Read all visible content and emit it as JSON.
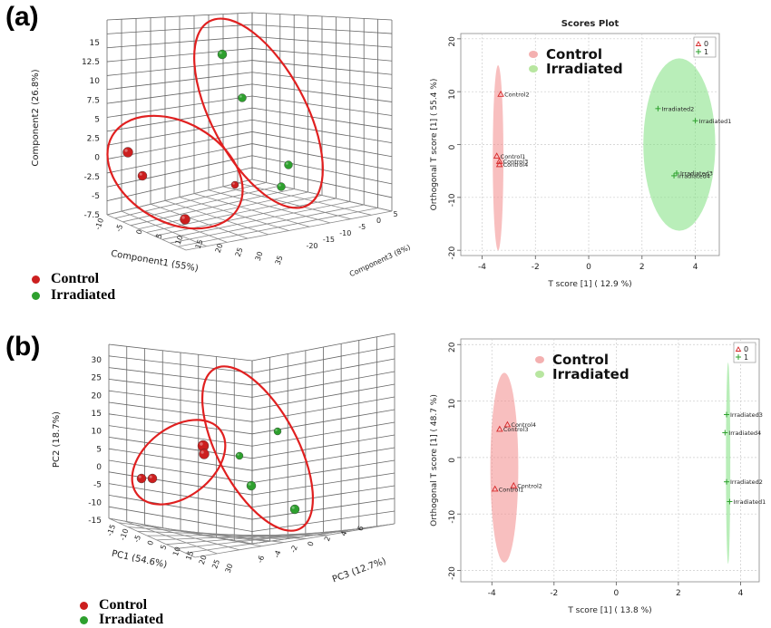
{
  "panels": {
    "a": "(a)",
    "b": "(b)"
  },
  "colors": {
    "control": "#cc1f1f",
    "irradiated": "#2ea02e",
    "ellipse": "#e02020",
    "pink": "#f28b8b",
    "green_fill": "#7fe07f"
  },
  "legend_a": {
    "control": "Control",
    "irradiated": "Irradiated"
  },
  "legend_b": {
    "control": "Control",
    "irradiated": "Irradiated"
  },
  "chart_data": [
    {
      "type": "scatter",
      "projection": "3d",
      "title": "",
      "xlabel": "Component1 (55%)",
      "ylabel": "Component2 (26.8%)",
      "zlabel": "Component3 (8%)",
      "xticks": [
        "-10",
        "-5",
        "0",
        "5",
        "10",
        "15",
        "20",
        "25",
        "30",
        "35"
      ],
      "yticks": [
        "-7.5",
        "-5",
        "-2.5",
        "0",
        "2.5",
        "5",
        "7.5",
        "10",
        "12.5",
        "15"
      ],
      "zticks": [
        "-20",
        "-15",
        "-10",
        "-5",
        "0",
        "5"
      ],
      "series": [
        {
          "name": "Control",
          "count": 4
        },
        {
          "name": "Irradiated",
          "count": 4
        }
      ]
    },
    {
      "type": "scatter",
      "title": "Scores Plot",
      "xlabel": "T score [1] ( 12.9 %)",
      "ylabel": "Orthogonal T score [1] ( 55.4 %)",
      "xlim": [
        -4.8,
        4.9
      ],
      "ylim": [
        -21,
        21
      ],
      "xticks": [
        -4,
        -2,
        0,
        2,
        4
      ],
      "yticks": [
        -20,
        -10,
        0,
        10,
        20
      ],
      "legend": {
        "position": "top-right",
        "entries": [
          "0",
          "1"
        ]
      },
      "inset_legend": [
        "Control",
        "Irradiated"
      ],
      "series": [
        {
          "name": "0",
          "marker": "triangle",
          "points": [
            {
              "label": "Control2",
              "x": -3.3,
              "y": 9.5
            },
            {
              "label": "Control1",
              "x": -3.45,
              "y": -2.2
            },
            {
              "label": "Control3",
              "x": -3.35,
              "y": -3.2
            },
            {
              "label": "Control4",
              "x": -3.35,
              "y": -3.8
            }
          ]
        },
        {
          "name": "1",
          "marker": "plus",
          "points": [
            {
              "label": "Irradiated2",
              "x": 2.6,
              "y": 6.8
            },
            {
              "label": "Irradiated1",
              "x": 4.0,
              "y": 4.5
            },
            {
              "label": "Irradiated3",
              "x": 3.3,
              "y": -5.4
            },
            {
              "label": "Irradiated4",
              "x": 3.2,
              "y": -5.9
            }
          ]
        }
      ]
    },
    {
      "type": "scatter",
      "projection": "3d",
      "title": "",
      "xlabel": "PC1 (54.6%)",
      "ylabel": "PC2 (18.7%)",
      "zlabel": "PC3 (12.7%)",
      "xticks": [
        "-15",
        "-10",
        "-5",
        "0",
        "5",
        "10",
        "15",
        "20",
        "25",
        "30"
      ],
      "yticks": [
        "-15",
        "-10",
        "-5",
        "0",
        "5",
        "10",
        "15",
        "20",
        "25",
        "30"
      ],
      "zticks": [
        "-6",
        "-4",
        "-2",
        "0",
        "2",
        "4",
        "6"
      ],
      "series": [
        {
          "name": "Control",
          "count": 4
        },
        {
          "name": "Irradiated",
          "count": 4
        }
      ]
    },
    {
      "type": "scatter",
      "title": "",
      "xlabel": "T score [1] ( 13.8 %)",
      "ylabel": "Orthogonal T score [1] ( 48.7 %)",
      "xlim": [
        -5,
        4.6
      ],
      "ylim": [
        -22,
        21
      ],
      "xticks": [
        -4,
        -2,
        0,
        2,
        4
      ],
      "yticks": [
        -20,
        -10,
        0,
        10,
        20
      ],
      "legend": {
        "position": "top-right",
        "entries": [
          "0",
          "1"
        ]
      },
      "inset_legend": [
        "Control",
        "Irradiated"
      ],
      "series": [
        {
          "name": "0",
          "marker": "triangle",
          "points": [
            {
              "label": "Control4",
              "x": -3.5,
              "y": 5.8
            },
            {
              "label": "Control3",
              "x": -3.75,
              "y": 5.0
            },
            {
              "label": "Control2",
              "x": -3.3,
              "y": -5.0
            },
            {
              "label": "Control1",
              "x": -3.9,
              "y": -5.6
            }
          ]
        },
        {
          "name": "1",
          "marker": "plus",
          "points": [
            {
              "label": "Irradiated3",
              "x": 3.55,
              "y": 7.6
            },
            {
              "label": "Irradiated4",
              "x": 3.5,
              "y": 4.4
            },
            {
              "label": "Irradiated2",
              "x": 3.55,
              "y": -4.3
            },
            {
              "label": "Irradiated1",
              "x": 3.65,
              "y": -7.8
            }
          ]
        }
      ]
    }
  ]
}
